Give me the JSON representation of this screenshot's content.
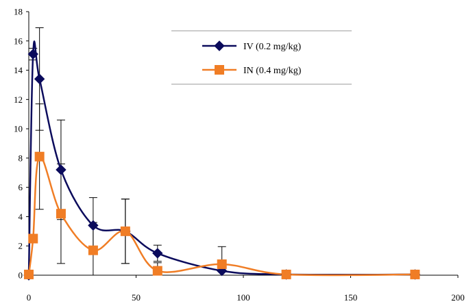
{
  "chart_data": {
    "type": "line",
    "title": "",
    "xlabel": "",
    "ylabel": "",
    "xlim": [
      0,
      200
    ],
    "ylim": [
      0,
      18
    ],
    "x_ticks": [
      0,
      50,
      100,
      150,
      200
    ],
    "y_ticks": [
      0,
      2,
      4,
      6,
      8,
      10,
      12,
      14,
      16,
      18
    ],
    "grid": false,
    "legend_position": "top-right",
    "smoothed": true,
    "series": [
      {
        "name": "IV (0.2 mg/kg)",
        "color": "#0b0b5c",
        "marker": "diamond",
        "x": [
          0,
          2,
          5,
          15,
          30,
          45,
          60,
          90,
          120,
          180
        ],
        "y": [
          0,
          15.1,
          13.4,
          7.2,
          3.4,
          3.0,
          1.5,
          0.3,
          0.05,
          0.05
        ],
        "error": [
          0,
          0.4,
          3.5,
          3.4,
          1.9,
          2.2,
          0.55,
          0.3,
          0,
          0
        ]
      },
      {
        "name": "IN (0.4 mg/kg)",
        "color": "#f07d25",
        "marker": "square",
        "x": [
          0,
          2,
          5,
          15,
          30,
          45,
          60,
          90,
          120,
          180
        ],
        "y": [
          0.05,
          2.5,
          8.1,
          4.2,
          1.7,
          3.0,
          0.3,
          0.75,
          0.05,
          0.05
        ],
        "error": [
          0,
          0,
          3.6,
          3.4,
          1.9,
          2.2,
          0.55,
          1.2,
          0,
          0
        ]
      }
    ]
  }
}
